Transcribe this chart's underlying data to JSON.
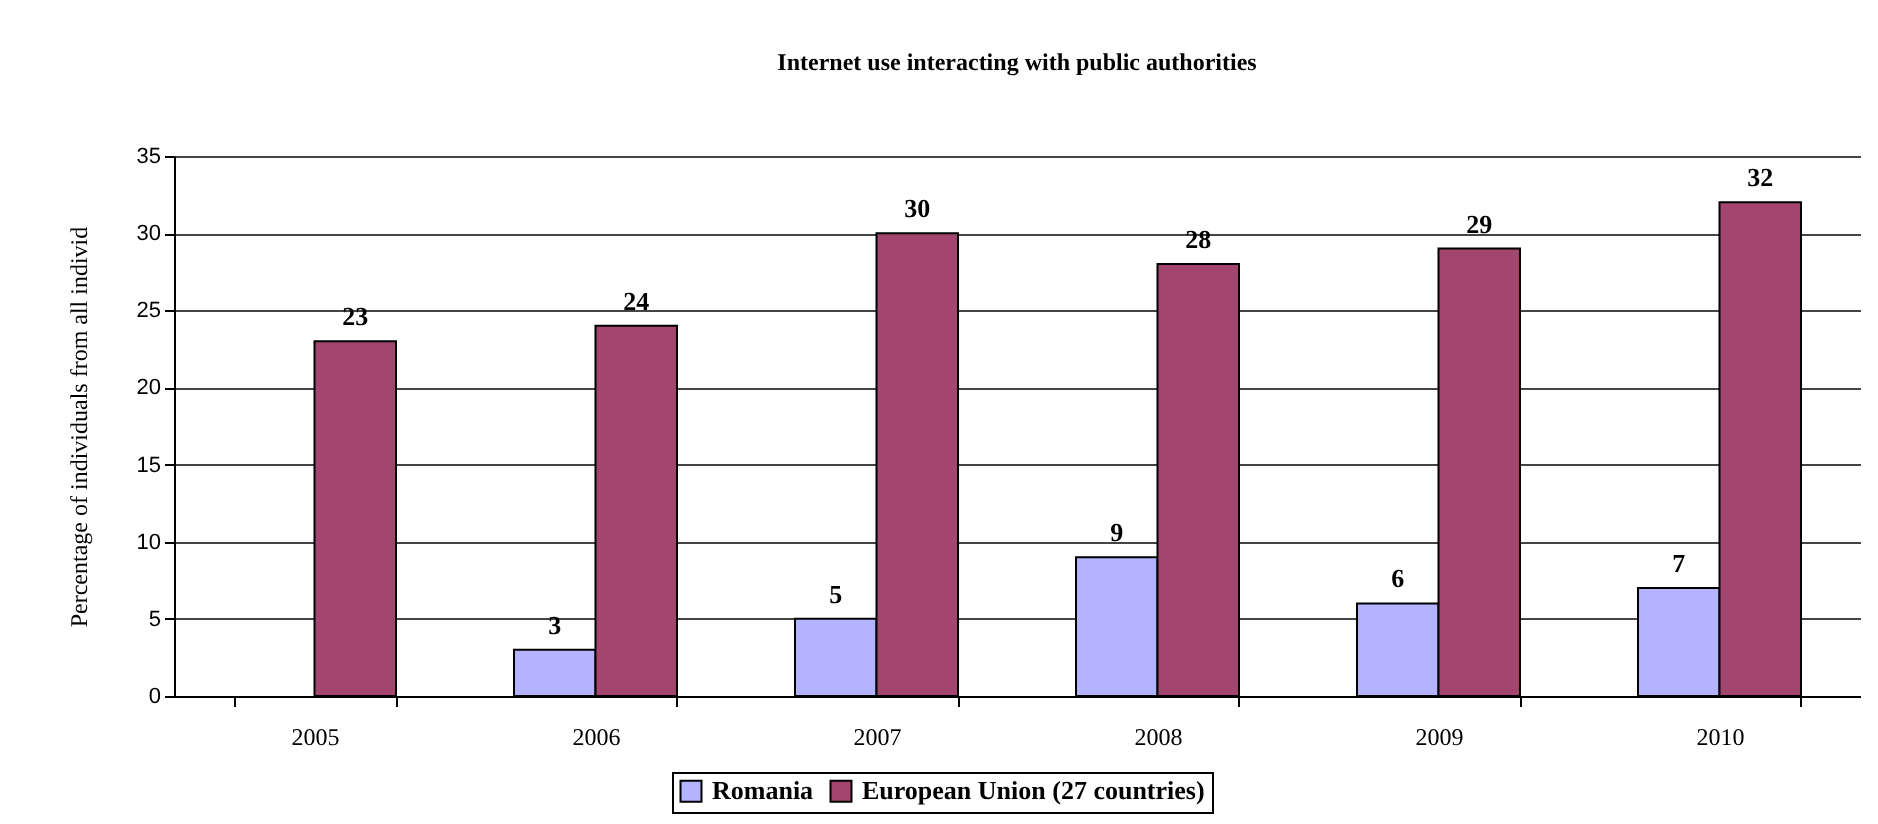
{
  "chart_data": {
    "type": "bar",
    "title": "Internet use interacting with public authorities",
    "ylabel": "Percentage of individuals from all individ",
    "categories": [
      "2005",
      "2006",
      "2007",
      "2008",
      "2009",
      "2010"
    ],
    "series": [
      {
        "name": "Romania",
        "color": "#b3b3ff",
        "values": [
          null,
          3,
          5,
          9,
          6,
          7
        ]
      },
      {
        "name": "European Union (27 countries)",
        "color": "#a3466f",
        "values": [
          23,
          24,
          30,
          28,
          29,
          32
        ]
      }
    ],
    "ylim": [
      0,
      35
    ],
    "yticks": [
      0,
      5,
      10,
      15,
      20,
      25,
      30,
      35
    ],
    "grid": "y",
    "legend": "bottom",
    "data_labels": true
  }
}
